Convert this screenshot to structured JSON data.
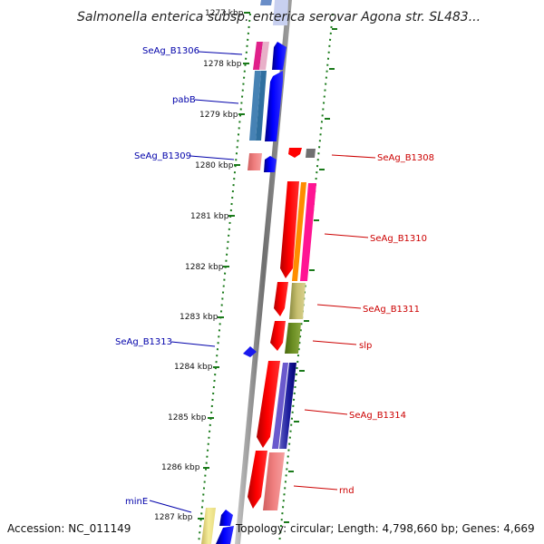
{
  "title": "Salmonella enterica subsp. enterica serovar Agona str. SL483...",
  "footer": {
    "accession": "Accession: NC_011149",
    "topology": "Topology: circular; Length: 4,798,660 bp; Genes: 4,669"
  },
  "ruler_ticks": [
    "1277 kbp",
    "1278 kbp",
    "1279 kbp",
    "1280 kbp",
    "1281 kbp",
    "1282 kbp",
    "1283 kbp",
    "1284 kbp",
    "1285 kbp",
    "1286 kbp",
    "1287 kbp"
  ],
  "left_labels": [
    "SeAg_B1306",
    "pabB",
    "SeAg_B1309",
    "SeAg_B1313",
    "minE"
  ],
  "right_labels": [
    "SeAg_B1308",
    "SeAg_B1310",
    "SeAg_B1311",
    "slp",
    "SeAg_B1314",
    "rnd"
  ],
  "colors": {
    "forward_strand_label": "#0000aa",
    "reverse_strand_label": "#cc0000",
    "tick": "#1a7a1a"
  }
}
